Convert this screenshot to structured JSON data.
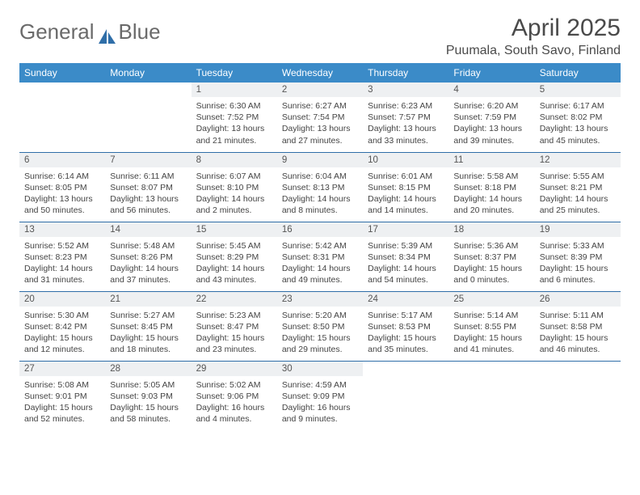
{
  "brand": {
    "part1": "General",
    "part2": "Blue"
  },
  "colors": {
    "header_bg": "#3b8bc8",
    "row_divider": "#2f6ea8",
    "daynum_bg": "#eef0f2",
    "logo_gray": "#6a6a6a",
    "logo_blue": "#2f6ea8",
    "text": "#444444"
  },
  "title": "April 2025",
  "location": "Puumala, South Savo, Finland",
  "weekdays": [
    "Sunday",
    "Monday",
    "Tuesday",
    "Wednesday",
    "Thursday",
    "Friday",
    "Saturday"
  ],
  "weeks": [
    [
      null,
      null,
      {
        "n": "1",
        "sr": "6:30 AM",
        "ss": "7:52 PM",
        "dl": "13 hours and 21 minutes."
      },
      {
        "n": "2",
        "sr": "6:27 AM",
        "ss": "7:54 PM",
        "dl": "13 hours and 27 minutes."
      },
      {
        "n": "3",
        "sr": "6:23 AM",
        "ss": "7:57 PM",
        "dl": "13 hours and 33 minutes."
      },
      {
        "n": "4",
        "sr": "6:20 AM",
        "ss": "7:59 PM",
        "dl": "13 hours and 39 minutes."
      },
      {
        "n": "5",
        "sr": "6:17 AM",
        "ss": "8:02 PM",
        "dl": "13 hours and 45 minutes."
      }
    ],
    [
      {
        "n": "6",
        "sr": "6:14 AM",
        "ss": "8:05 PM",
        "dl": "13 hours and 50 minutes."
      },
      {
        "n": "7",
        "sr": "6:11 AM",
        "ss": "8:07 PM",
        "dl": "13 hours and 56 minutes."
      },
      {
        "n": "8",
        "sr": "6:07 AM",
        "ss": "8:10 PM",
        "dl": "14 hours and 2 minutes."
      },
      {
        "n": "9",
        "sr": "6:04 AM",
        "ss": "8:13 PM",
        "dl": "14 hours and 8 minutes."
      },
      {
        "n": "10",
        "sr": "6:01 AM",
        "ss": "8:15 PM",
        "dl": "14 hours and 14 minutes."
      },
      {
        "n": "11",
        "sr": "5:58 AM",
        "ss": "8:18 PM",
        "dl": "14 hours and 20 minutes."
      },
      {
        "n": "12",
        "sr": "5:55 AM",
        "ss": "8:21 PM",
        "dl": "14 hours and 25 minutes."
      }
    ],
    [
      {
        "n": "13",
        "sr": "5:52 AM",
        "ss": "8:23 PM",
        "dl": "14 hours and 31 minutes."
      },
      {
        "n": "14",
        "sr": "5:48 AM",
        "ss": "8:26 PM",
        "dl": "14 hours and 37 minutes."
      },
      {
        "n": "15",
        "sr": "5:45 AM",
        "ss": "8:29 PM",
        "dl": "14 hours and 43 minutes."
      },
      {
        "n": "16",
        "sr": "5:42 AM",
        "ss": "8:31 PM",
        "dl": "14 hours and 49 minutes."
      },
      {
        "n": "17",
        "sr": "5:39 AM",
        "ss": "8:34 PM",
        "dl": "14 hours and 54 minutes."
      },
      {
        "n": "18",
        "sr": "5:36 AM",
        "ss": "8:37 PM",
        "dl": "15 hours and 0 minutes."
      },
      {
        "n": "19",
        "sr": "5:33 AM",
        "ss": "8:39 PM",
        "dl": "15 hours and 6 minutes."
      }
    ],
    [
      {
        "n": "20",
        "sr": "5:30 AM",
        "ss": "8:42 PM",
        "dl": "15 hours and 12 minutes."
      },
      {
        "n": "21",
        "sr": "5:27 AM",
        "ss": "8:45 PM",
        "dl": "15 hours and 18 minutes."
      },
      {
        "n": "22",
        "sr": "5:23 AM",
        "ss": "8:47 PM",
        "dl": "15 hours and 23 minutes."
      },
      {
        "n": "23",
        "sr": "5:20 AM",
        "ss": "8:50 PM",
        "dl": "15 hours and 29 minutes."
      },
      {
        "n": "24",
        "sr": "5:17 AM",
        "ss": "8:53 PM",
        "dl": "15 hours and 35 minutes."
      },
      {
        "n": "25",
        "sr": "5:14 AM",
        "ss": "8:55 PM",
        "dl": "15 hours and 41 minutes."
      },
      {
        "n": "26",
        "sr": "5:11 AM",
        "ss": "8:58 PM",
        "dl": "15 hours and 46 minutes."
      }
    ],
    [
      {
        "n": "27",
        "sr": "5:08 AM",
        "ss": "9:01 PM",
        "dl": "15 hours and 52 minutes."
      },
      {
        "n": "28",
        "sr": "5:05 AM",
        "ss": "9:03 PM",
        "dl": "15 hours and 58 minutes."
      },
      {
        "n": "29",
        "sr": "5:02 AM",
        "ss": "9:06 PM",
        "dl": "16 hours and 4 minutes."
      },
      {
        "n": "30",
        "sr": "4:59 AM",
        "ss": "9:09 PM",
        "dl": "16 hours and 9 minutes."
      },
      null,
      null,
      null
    ]
  ],
  "labels": {
    "sunrise": "Sunrise: ",
    "sunset": "Sunset: ",
    "daylight": "Daylight: "
  }
}
